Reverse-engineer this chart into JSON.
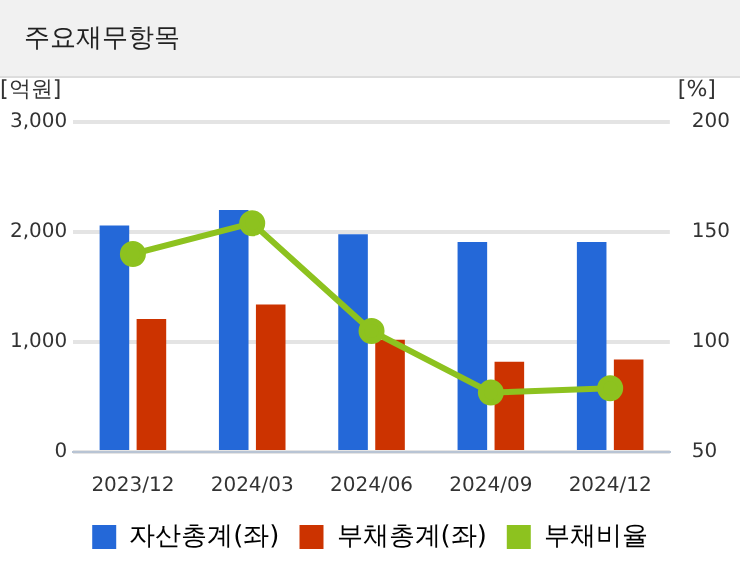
{
  "chart_data": {
    "type": "bar",
    "title": "주요재무항목",
    "ylabel": "[억원]",
    "y2label": "[%]",
    "categories": [
      "2023/12",
      "2024/03",
      "2024/06",
      "2024/09",
      "2024/12"
    ],
    "series": [
      {
        "name": "자산총계(좌)",
        "color": "#2468d8",
        "values": [
          2060,
          2200,
          1980,
          1910,
          1910
        ]
      },
      {
        "name": "부채총계(좌)",
        "color": "#cc3300",
        "values": [
          1210,
          1340,
          1020,
          820,
          840
        ]
      },
      {
        "name": "부채비율",
        "type": "line",
        "axis": "y2",
        "color": "#8dc21f",
        "values": [
          140,
          154,
          105,
          77,
          79
        ],
        "marker": "circle"
      }
    ],
    "ylim": [
      0,
      3000
    ],
    "yticks": [
      {
        "value": 0,
        "label": "0"
      },
      {
        "value": 1000,
        "label": "1,000"
      },
      {
        "value": 2000,
        "label": "2,000"
      },
      {
        "value": 3000,
        "label": "3,000"
      }
    ],
    "y2lim": [
      50,
      200
    ],
    "y2ticks": [
      50,
      100,
      150,
      200
    ],
    "grid": "y",
    "legend": "bottom"
  }
}
